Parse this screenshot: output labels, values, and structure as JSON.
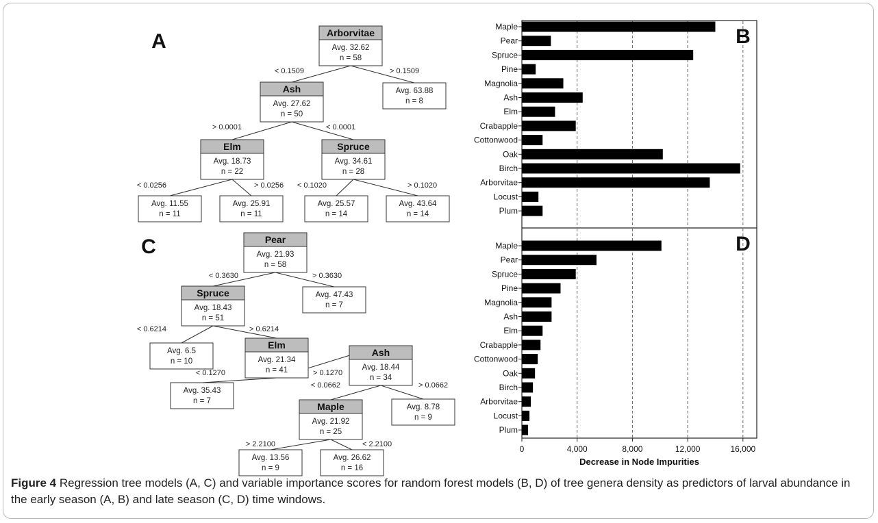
{
  "figure": {
    "caption_label": "Figure 4",
    "caption_text": " Regression tree models (A, C) and variable importance scores for random forest models (B, D) of tree genera density as predictors of larval abundance in the early season (A, B) and late season (C, D) time windows."
  },
  "trees": {
    "A": {
      "panel_label": "A",
      "nodes": [
        {
          "id": "a1",
          "name": "Arborvitae",
          "avg": "Avg. 32.62",
          "n": "n = 58"
        },
        {
          "id": "a2",
          "name": "Ash",
          "avg": "Avg. 27.62",
          "n": "n = 50"
        },
        {
          "id": "a3",
          "name": "",
          "avg": "Avg. 63.88",
          "n": "n = 8"
        },
        {
          "id": "a4",
          "name": "Elm",
          "avg": "Avg. 18.73",
          "n": "n = 22"
        },
        {
          "id": "a5",
          "name": "Spruce",
          "avg": "Avg. 34.61",
          "n": "n = 28"
        },
        {
          "id": "a6",
          "name": "",
          "avg": "Avg. 11.55",
          "n": "n = 11"
        },
        {
          "id": "a7",
          "name": "",
          "avg": "Avg. 25.91",
          "n": "n = 11"
        },
        {
          "id": "a8",
          "name": "",
          "avg": "Avg. 25.57",
          "n": "n = 14"
        },
        {
          "id": "a9",
          "name": "",
          "avg": "Avg. 43.64",
          "n": "n = 14"
        }
      ],
      "edges": [
        {
          "from": "a1",
          "to": "a2",
          "label": "< 0.1509"
        },
        {
          "from": "a1",
          "to": "a3",
          "label": "> 0.1509"
        },
        {
          "from": "a2",
          "to": "a4",
          "label": "> 0.0001"
        },
        {
          "from": "a2",
          "to": "a5",
          "label": "< 0.0001"
        },
        {
          "from": "a4",
          "to": "a6",
          "label": "< 0.0256"
        },
        {
          "from": "a4",
          "to": "a7",
          "label": "> 0.0256"
        },
        {
          "from": "a5",
          "to": "a8",
          "label": "< 0.1020"
        },
        {
          "from": "a5",
          "to": "a9",
          "label": "> 0.1020"
        }
      ]
    },
    "C": {
      "panel_label": "C",
      "nodes": [
        {
          "id": "c1",
          "name": "Pear",
          "avg": "Avg. 21.93",
          "n": "n = 58"
        },
        {
          "id": "c2",
          "name": "Spruce",
          "avg": "Avg. 18.43",
          "n": "n = 51"
        },
        {
          "id": "c3",
          "name": "",
          "avg": "Avg. 47.43",
          "n": "n = 7"
        },
        {
          "id": "c4",
          "name": "",
          "avg": "Avg. 6.5",
          "n": "n = 10"
        },
        {
          "id": "c5",
          "name": "Elm",
          "avg": "Avg. 21.34",
          "n": "n = 41"
        },
        {
          "id": "c6",
          "name": "",
          "avg": "Avg. 35.43",
          "n": "n = 7"
        },
        {
          "id": "c7",
          "name": "Ash",
          "avg": "Avg. 18.44",
          "n": "n = 34"
        },
        {
          "id": "c8",
          "name": "Maple",
          "avg": "Avg. 21.92",
          "n": "n = 25"
        },
        {
          "id": "c9",
          "name": "",
          "avg": "Avg. 8.78",
          "n": "n = 9"
        },
        {
          "id": "c10",
          "name": "",
          "avg": "Avg. 13.56",
          "n": "n = 9"
        },
        {
          "id": "c11",
          "name": "",
          "avg": "Avg. 26.62",
          "n": "n = 16"
        }
      ],
      "edges": [
        {
          "from": "c1",
          "to": "c2",
          "label": "< 0.3630"
        },
        {
          "from": "c1",
          "to": "c3",
          "label": "> 0.3630"
        },
        {
          "from": "c2",
          "to": "c4",
          "label": "< 0.6214"
        },
        {
          "from": "c2",
          "to": "c5",
          "label": "> 0.6214"
        },
        {
          "from": "c5",
          "to": "c6",
          "label": "< 0.1270"
        },
        {
          "from": "c5",
          "to": "c7",
          "label": "> 0.1270"
        },
        {
          "from": "c7",
          "to": "c8",
          "label": "< 0.0662"
        },
        {
          "from": "c7",
          "to": "c9",
          "label": "> 0.0662"
        },
        {
          "from": "c8",
          "to": "c10",
          "label": "> 2.2100"
        },
        {
          "from": "c8",
          "to": "c11",
          "label": "< 2.2100"
        }
      ]
    }
  },
  "chart_data": [
    {
      "type": "bar",
      "orientation": "horizontal",
      "panel_label": "B",
      "categories": [
        "Maple",
        "Pear",
        "Spruce",
        "Pine",
        "Magnolia",
        "Ash",
        "Elm",
        "Crabapple",
        "Cottonwood",
        "Oak",
        "Birch",
        "Arborvitae",
        "Locust",
        "Plum"
      ],
      "values": [
        14000,
        2100,
        12400,
        1000,
        3000,
        4400,
        2400,
        3900,
        1500,
        10200,
        15800,
        13600,
        1200,
        1500
      ],
      "xlim": [
        0,
        17000
      ],
      "xticks": [
        0,
        4000,
        8000,
        12000,
        16000
      ],
      "grid": "vertical dashed",
      "bar_color": "#000000"
    },
    {
      "type": "bar",
      "orientation": "horizontal",
      "panel_label": "D",
      "categories": [
        "Maple",
        "Pear",
        "Spruce",
        "Pine",
        "Magnolia",
        "Ash",
        "Elm",
        "Crabapple",
        "Cottonwood",
        "Oak",
        "Birch",
        "Arborvitae",
        "Locust",
        "Plum"
      ],
      "values": [
        10100,
        5400,
        3900,
        2800,
        2150,
        2150,
        1500,
        1350,
        1150,
        950,
        800,
        650,
        550,
        450
      ],
      "xlim": [
        0,
        17000
      ],
      "xticks": [
        0,
        4000,
        8000,
        12000,
        16000
      ],
      "xtick_labels": [
        "0",
        "4,000",
        "8,000",
        "12,000",
        "16,000"
      ],
      "xlabel": "Decrease in Node Impurities",
      "grid": "vertical dashed",
      "bar_color": "#000000"
    }
  ]
}
